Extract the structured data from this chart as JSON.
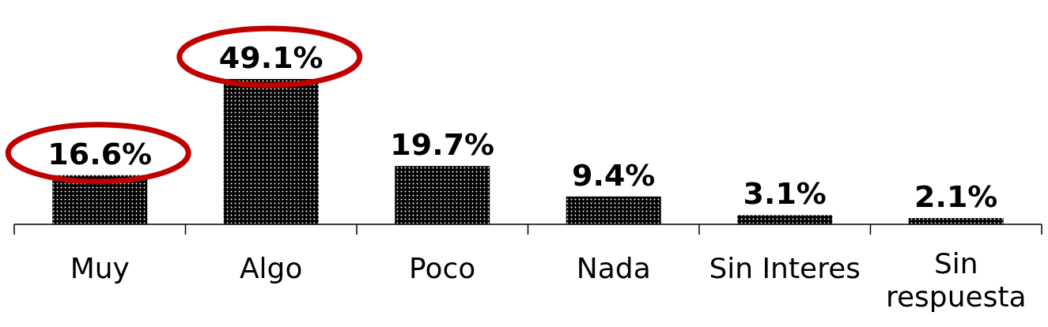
{
  "chart_data": {
    "type": "bar",
    "categories": [
      "Muy",
      "Algo",
      "Poco",
      "Nada",
      "Sin Interes",
      "Sin respuesta"
    ],
    "values": [
      16.6,
      49.1,
      19.7,
      9.4,
      3.1,
      2.1
    ],
    "value_labels": [
      "16.6%",
      "49.1%",
      "19.7%",
      "9.4%",
      "3.1%",
      "2.1%"
    ],
    "color": "#000000"
  }
}
